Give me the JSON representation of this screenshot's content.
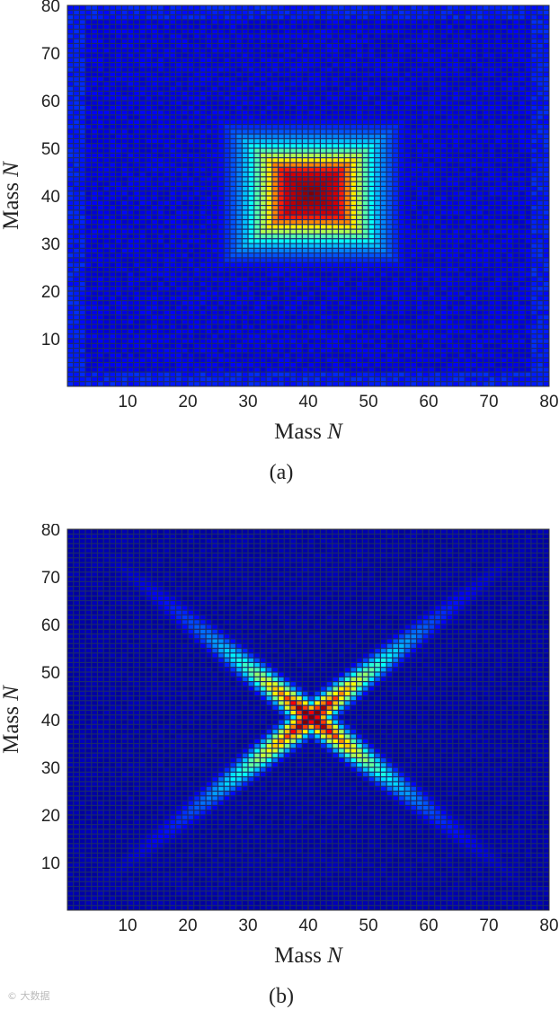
{
  "chart_data": [
    {
      "type": "heatmap",
      "panel_label": "(a)",
      "xlabel": "Mass",
      "xlabel_var": "N",
      "ylabel": "Mass",
      "ylabel_var": "N",
      "xlim": [
        0,
        80
      ],
      "ylim": [
        0,
        80
      ],
      "xticks": [
        10,
        20,
        30,
        40,
        50,
        60,
        70,
        80
      ],
      "xtick_labels": [
        "10",
        "20",
        "30",
        "40",
        "50",
        "60",
        "70",
        "80"
      ],
      "yticks": [
        10,
        20,
        30,
        40,
        50,
        60,
        70,
        80
      ],
      "ytick_labels": [
        "10",
        "20",
        "30",
        "40",
        "50",
        "60",
        "70",
        "80"
      ],
      "grid_size": [
        80,
        80
      ],
      "colormap": "jet",
      "pattern": "square-peak",
      "peak_center": [
        41,
        41
      ],
      "hot_core_half_width": 4,
      "falloff_range": 12,
      "background_level": 0.08
    },
    {
      "type": "heatmap",
      "panel_label": "(b)",
      "xlabel": "Mass",
      "xlabel_var": "N",
      "ylabel": "Mass",
      "ylabel_var": "N",
      "xlim": [
        0,
        80
      ],
      "ylim": [
        0,
        80
      ],
      "xticks": [
        10,
        20,
        30,
        40,
        50,
        60,
        70,
        80
      ],
      "xtick_labels": [
        "10",
        "20",
        "30",
        "40",
        "50",
        "60",
        "70",
        "80"
      ],
      "yticks": [
        10,
        20,
        30,
        40,
        50,
        60,
        70,
        80
      ],
      "ytick_labels": [
        "10",
        "20",
        "30",
        "40",
        "50",
        "60",
        "70",
        "80"
      ],
      "grid_size": [
        80,
        80
      ],
      "colormap": "jet",
      "pattern": "x-cross",
      "cross_center": [
        41,
        41
      ],
      "arm_width": 1.6,
      "arm_decay": 16,
      "background_level": 0.03
    }
  ],
  "watermark": "© 大数据"
}
